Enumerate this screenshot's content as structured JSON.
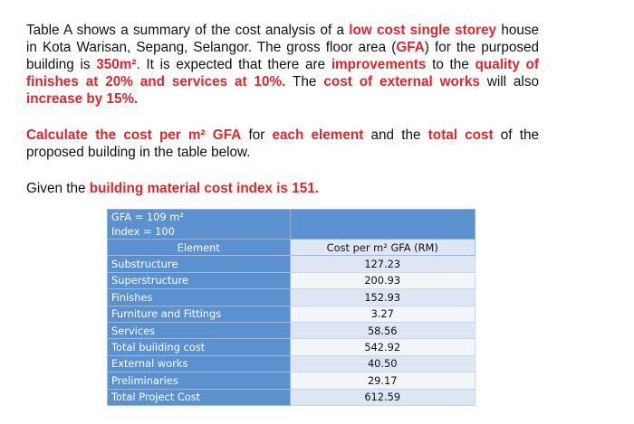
{
  "intro": {
    "t1": "Table A shows a summary of the cost analysis of a ",
    "h1": "low cost single storey",
    "t2": " house in Kota Warisan, Sepang, Selangor. The gross floor area (",
    "h2": "GFA",
    "t3": ") for the purposed building is ",
    "h3": "350m²",
    "t4": ". It is expected that there are ",
    "h4": "improvements",
    "t5": " to the ",
    "h5": "quality of finishes at 20% and services at 10%.",
    "t6": " The ",
    "h6": "cost of external works",
    "t7": " will also ",
    "h7": "increase by 15%."
  },
  "task": {
    "h1": "Calculate the cost per m² GFA",
    "t1": " for ",
    "h2": "each element",
    "t2": " and the ",
    "h3": "total cost",
    "t3": " of the proposed building in the table below."
  },
  "given": {
    "t1": "Given the ",
    "h1": "building material cost index is 151."
  },
  "table": {
    "gfa": "GFA  = 109 m²",
    "index": "Index = 100",
    "col_element": "Element",
    "col_cost": "Cost per m² GFA (RM)",
    "rows": [
      {
        "element": "Substructure",
        "cost": "127.23"
      },
      {
        "element": "Superstructure",
        "cost": "200.93"
      },
      {
        "element": "Finishes",
        "cost": "152.93"
      },
      {
        "element": "Furniture and Fittings",
        "cost": "3.27"
      },
      {
        "element": "Services",
        "cost": "58.56"
      },
      {
        "element": "Total building cost",
        "cost": "542.92"
      },
      {
        "element": "External works",
        "cost": "40.50"
      },
      {
        "element": "Preliminaries",
        "cost": "29.17"
      },
      {
        "element": "Total Project Cost",
        "cost": "612.59"
      }
    ]
  },
  "colors": {
    "highlight": "#e0262b",
    "table_blue": "#5b91cf",
    "table_light": "#dde6f2"
  }
}
